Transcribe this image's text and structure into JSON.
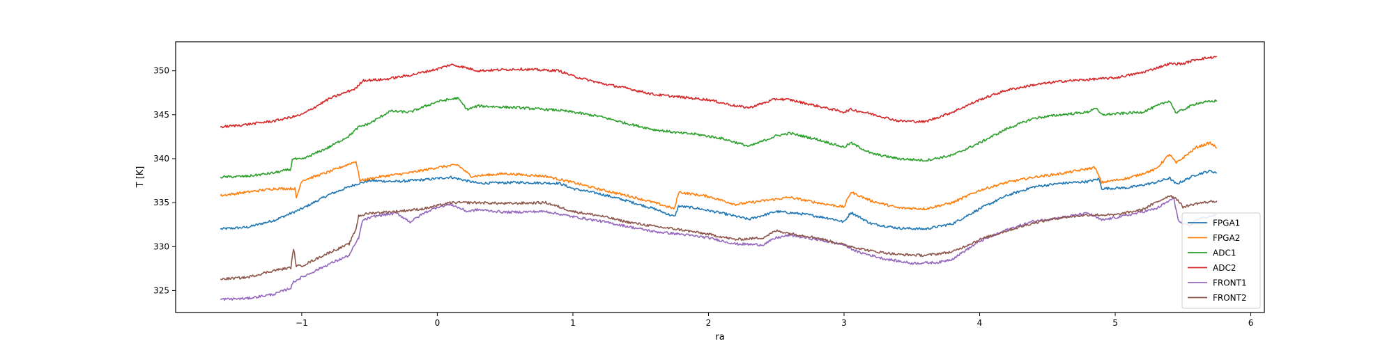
{
  "chart_data": {
    "type": "line",
    "xlabel": "ra",
    "ylabel": "T [K]",
    "xlim": [
      -1.93,
      6.1
    ],
    "ylim": [
      322.5,
      353.3
    ],
    "xticks": [
      -1,
      0,
      1,
      2,
      3,
      4,
      5,
      6
    ],
    "yticks": [
      325,
      330,
      335,
      340,
      345,
      350
    ],
    "grid": false,
    "legend_position": "lower right",
    "series": [
      {
        "name": "FPGA1",
        "color": "#1f77b4",
        "points": [
          [
            -1.6,
            332.0
          ],
          [
            -1.4,
            332.2
          ],
          [
            -1.2,
            333.0
          ],
          [
            -1.0,
            334.3
          ],
          [
            -0.8,
            335.9
          ],
          [
            -0.6,
            337.1
          ],
          [
            -0.5,
            337.5
          ],
          [
            -0.3,
            337.4
          ],
          [
            -0.1,
            337.6
          ],
          [
            0.1,
            337.9
          ],
          [
            0.3,
            337.2
          ],
          [
            0.6,
            337.3
          ],
          [
            0.9,
            337.2
          ],
          [
            1.0,
            336.6
          ],
          [
            1.2,
            336.0
          ],
          [
            1.4,
            335.2
          ],
          [
            1.6,
            334.3
          ],
          [
            1.75,
            333.4
          ],
          [
            1.78,
            334.6
          ],
          [
            1.9,
            334.4
          ],
          [
            2.1,
            333.8
          ],
          [
            2.3,
            333.1
          ],
          [
            2.5,
            334.0
          ],
          [
            2.7,
            333.7
          ],
          [
            2.9,
            333.2
          ],
          [
            3.0,
            332.8
          ],
          [
            3.05,
            333.9
          ],
          [
            3.2,
            332.6
          ],
          [
            3.4,
            332.1
          ],
          [
            3.6,
            332.0
          ],
          [
            3.8,
            332.6
          ],
          [
            4.0,
            334.3
          ],
          [
            4.2,
            335.8
          ],
          [
            4.4,
            336.8
          ],
          [
            4.6,
            337.2
          ],
          [
            4.8,
            337.4
          ],
          [
            4.88,
            337.7
          ],
          [
            4.9,
            336.6
          ],
          [
            5.1,
            336.7
          ],
          [
            5.3,
            337.3
          ],
          [
            5.4,
            337.8
          ],
          [
            5.45,
            337.1
          ],
          [
            5.6,
            338.2
          ],
          [
            5.7,
            338.6
          ],
          [
            5.75,
            338.4
          ]
        ]
      },
      {
        "name": "FPGA2",
        "color": "#ff7f0e",
        "points": [
          [
            -1.6,
            335.8
          ],
          [
            -1.4,
            336.2
          ],
          [
            -1.2,
            336.6
          ],
          [
            -1.05,
            336.6
          ],
          [
            -1.04,
            335.5
          ],
          [
            -1.0,
            337.5
          ],
          [
            -0.8,
            338.5
          ],
          [
            -0.6,
            339.7
          ],
          [
            -0.57,
            337.5
          ],
          [
            -0.4,
            338.0
          ],
          [
            -0.2,
            338.4
          ],
          [
            0.0,
            339.0
          ],
          [
            0.15,
            339.3
          ],
          [
            0.25,
            338.0
          ],
          [
            0.5,
            338.3
          ],
          [
            0.8,
            338.0
          ],
          [
            1.0,
            337.3
          ],
          [
            1.2,
            336.5
          ],
          [
            1.4,
            335.8
          ],
          [
            1.6,
            335.0
          ],
          [
            1.75,
            334.3
          ],
          [
            1.78,
            336.2
          ],
          [
            2.0,
            335.7
          ],
          [
            2.2,
            334.8
          ],
          [
            2.4,
            335.2
          ],
          [
            2.6,
            335.6
          ],
          [
            2.8,
            335.0
          ],
          [
            3.0,
            334.5
          ],
          [
            3.05,
            336.2
          ],
          [
            3.2,
            335.2
          ],
          [
            3.4,
            334.4
          ],
          [
            3.6,
            334.3
          ],
          [
            3.8,
            335.0
          ],
          [
            4.0,
            336.4
          ],
          [
            4.2,
            337.3
          ],
          [
            4.4,
            337.9
          ],
          [
            4.6,
            338.3
          ],
          [
            4.85,
            339.0
          ],
          [
            4.9,
            337.3
          ],
          [
            5.1,
            337.8
          ],
          [
            5.3,
            338.8
          ],
          [
            5.4,
            340.5
          ],
          [
            5.45,
            339.5
          ],
          [
            5.6,
            341.3
          ],
          [
            5.7,
            341.8
          ],
          [
            5.75,
            341.2
          ]
        ]
      },
      {
        "name": "ADC1",
        "color": "#2ca02c",
        "points": [
          [
            -1.6,
            337.9
          ],
          [
            -1.4,
            338.0
          ],
          [
            -1.2,
            338.4
          ],
          [
            -1.08,
            338.8
          ],
          [
            -1.07,
            340.0
          ],
          [
            -1.0,
            339.9
          ],
          [
            -0.8,
            341.3
          ],
          [
            -0.65,
            342.6
          ],
          [
            -0.58,
            343.6
          ],
          [
            -0.5,
            344.0
          ],
          [
            -0.35,
            345.4
          ],
          [
            -0.2,
            345.3
          ],
          [
            0.0,
            346.5
          ],
          [
            0.15,
            346.9
          ],
          [
            0.22,
            345.6
          ],
          [
            0.3,
            346.0
          ],
          [
            0.6,
            345.8
          ],
          [
            0.9,
            345.5
          ],
          [
            1.0,
            345.3
          ],
          [
            1.2,
            344.8
          ],
          [
            1.4,
            344.0
          ],
          [
            1.6,
            343.3
          ],
          [
            1.8,
            342.9
          ],
          [
            1.9,
            342.8
          ],
          [
            2.1,
            342.3
          ],
          [
            2.3,
            341.4
          ],
          [
            2.5,
            342.6
          ],
          [
            2.6,
            342.9
          ],
          [
            2.8,
            342.2
          ],
          [
            3.0,
            341.3
          ],
          [
            3.05,
            341.8
          ],
          [
            3.2,
            340.6
          ],
          [
            3.4,
            340.0
          ],
          [
            3.6,
            339.8
          ],
          [
            3.8,
            340.4
          ],
          [
            4.0,
            341.8
          ],
          [
            4.2,
            343.4
          ],
          [
            4.4,
            344.6
          ],
          [
            4.6,
            345.0
          ],
          [
            4.8,
            345.3
          ],
          [
            4.85,
            345.8
          ],
          [
            4.9,
            345.0
          ],
          [
            5.2,
            345.3
          ],
          [
            5.4,
            346.6
          ],
          [
            5.45,
            345.2
          ],
          [
            5.6,
            346.3
          ],
          [
            5.75,
            346.6
          ]
        ]
      },
      {
        "name": "ADC2",
        "color": "#d62728",
        "points": [
          [
            -1.6,
            343.6
          ],
          [
            -1.4,
            343.9
          ],
          [
            -1.2,
            344.3
          ],
          [
            -1.0,
            345.0
          ],
          [
            -0.8,
            346.8
          ],
          [
            -0.6,
            348.0
          ],
          [
            -0.55,
            348.9
          ],
          [
            -0.4,
            349.0
          ],
          [
            -0.2,
            349.5
          ],
          [
            0.0,
            350.2
          ],
          [
            0.1,
            350.7
          ],
          [
            0.2,
            350.4
          ],
          [
            0.3,
            350.0
          ],
          [
            0.6,
            350.2
          ],
          [
            0.9,
            350.0
          ],
          [
            1.0,
            349.4
          ],
          [
            1.2,
            348.6
          ],
          [
            1.4,
            348.0
          ],
          [
            1.6,
            347.3
          ],
          [
            1.8,
            347.0
          ],
          [
            2.0,
            346.7
          ],
          [
            2.2,
            346.0
          ],
          [
            2.3,
            345.8
          ],
          [
            2.5,
            346.8
          ],
          [
            2.6,
            346.7
          ],
          [
            2.8,
            346.0
          ],
          [
            3.0,
            345.3
          ],
          [
            3.05,
            345.6
          ],
          [
            3.2,
            345.1
          ],
          [
            3.4,
            344.3
          ],
          [
            3.6,
            344.2
          ],
          [
            3.8,
            345.3
          ],
          [
            4.0,
            346.7
          ],
          [
            4.2,
            347.8
          ],
          [
            4.4,
            348.4
          ],
          [
            4.6,
            348.8
          ],
          [
            4.8,
            349.0
          ],
          [
            5.0,
            349.2
          ],
          [
            5.2,
            349.8
          ],
          [
            5.4,
            350.8
          ],
          [
            5.5,
            350.8
          ],
          [
            5.6,
            351.3
          ],
          [
            5.75,
            351.6
          ]
        ]
      },
      {
        "name": "FRONT1",
        "color": "#9467bd",
        "points": [
          [
            -1.6,
            324.0
          ],
          [
            -1.4,
            324.1
          ],
          [
            -1.2,
            324.6
          ],
          [
            -1.08,
            325.3
          ],
          [
            -1.06,
            326.0
          ],
          [
            -1.0,
            326.5
          ],
          [
            -0.8,
            328.0
          ],
          [
            -0.65,
            329.0
          ],
          [
            -0.58,
            331.0
          ],
          [
            -0.55,
            333.0
          ],
          [
            -0.45,
            333.5
          ],
          [
            -0.3,
            333.8
          ],
          [
            -0.2,
            332.8
          ],
          [
            -0.1,
            333.8
          ],
          [
            0.0,
            334.5
          ],
          [
            0.1,
            334.8
          ],
          [
            0.22,
            334.0
          ],
          [
            0.3,
            334.2
          ],
          [
            0.5,
            333.9
          ],
          [
            0.8,
            334.0
          ],
          [
            1.0,
            333.4
          ],
          [
            1.2,
            332.9
          ],
          [
            1.4,
            332.3
          ],
          [
            1.6,
            331.7
          ],
          [
            1.8,
            331.4
          ],
          [
            2.0,
            331.0
          ],
          [
            2.2,
            330.3
          ],
          [
            2.4,
            330.2
          ],
          [
            2.5,
            331.0
          ],
          [
            2.6,
            331.3
          ],
          [
            2.8,
            330.8
          ],
          [
            3.0,
            330.2
          ],
          [
            3.1,
            329.4
          ],
          [
            3.3,
            328.6
          ],
          [
            3.5,
            328.1
          ],
          [
            3.7,
            328.2
          ],
          [
            3.8,
            328.6
          ],
          [
            4.0,
            330.6
          ],
          [
            4.2,
            331.9
          ],
          [
            4.4,
            332.9
          ],
          [
            4.6,
            333.3
          ],
          [
            4.8,
            333.8
          ],
          [
            4.9,
            333.0
          ],
          [
            5.1,
            333.6
          ],
          [
            5.3,
            334.3
          ],
          [
            5.43,
            335.5
          ],
          [
            5.47,
            332.8
          ],
          [
            5.55,
            332.3
          ],
          [
            5.6,
            333.1
          ],
          [
            5.75,
            333.6
          ]
        ]
      },
      {
        "name": "FRONT2",
        "color": "#8c564b",
        "points": [
          [
            -1.6,
            326.3
          ],
          [
            -1.4,
            326.5
          ],
          [
            -1.2,
            327.3
          ],
          [
            -1.08,
            327.6
          ],
          [
            -1.06,
            329.8
          ],
          [
            -1.04,
            327.8
          ],
          [
            -1.0,
            327.8
          ],
          [
            -0.8,
            329.3
          ],
          [
            -0.65,
            330.3
          ],
          [
            -0.6,
            332.0
          ],
          [
            -0.58,
            333.5
          ],
          [
            -0.5,
            333.8
          ],
          [
            -0.3,
            334.0
          ],
          [
            -0.1,
            334.3
          ],
          [
            0.1,
            335.0
          ],
          [
            0.3,
            335.0
          ],
          [
            0.5,
            334.9
          ],
          [
            0.8,
            335.0
          ],
          [
            1.0,
            334.0
          ],
          [
            1.2,
            333.5
          ],
          [
            1.4,
            332.8
          ],
          [
            1.6,
            332.3
          ],
          [
            1.8,
            331.9
          ],
          [
            2.0,
            331.4
          ],
          [
            2.2,
            330.8
          ],
          [
            2.4,
            331.0
          ],
          [
            2.5,
            331.8
          ],
          [
            2.6,
            331.5
          ],
          [
            2.8,
            331.0
          ],
          [
            3.0,
            330.2
          ],
          [
            3.2,
            329.5
          ],
          [
            3.4,
            329.1
          ],
          [
            3.6,
            329.0
          ],
          [
            3.8,
            329.4
          ],
          [
            4.0,
            330.8
          ],
          [
            4.2,
            331.8
          ],
          [
            4.4,
            332.7
          ],
          [
            4.6,
            333.3
          ],
          [
            4.8,
            333.6
          ],
          [
            5.0,
            333.6
          ],
          [
            5.2,
            334.2
          ],
          [
            5.4,
            335.8
          ],
          [
            5.45,
            335.5
          ],
          [
            5.5,
            334.5
          ],
          [
            5.6,
            334.9
          ],
          [
            5.75,
            335.2
          ]
        ]
      }
    ]
  }
}
